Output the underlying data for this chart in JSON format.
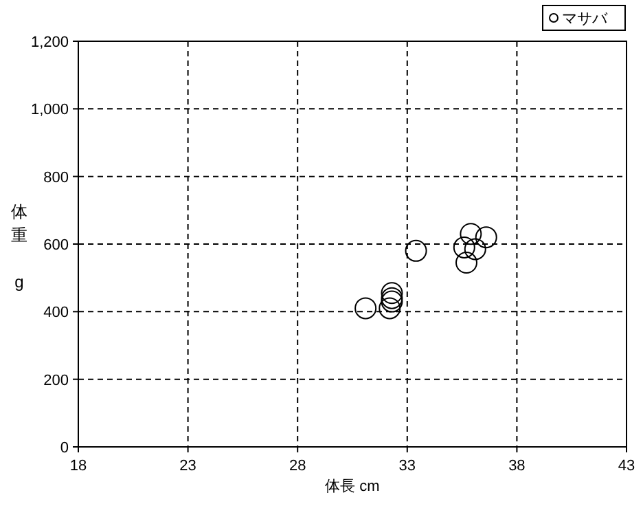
{
  "chart_data": {
    "type": "scatter",
    "xlabel": "体長 cm",
    "ylabel": "体重 g",
    "xlim": [
      18,
      43
    ],
    "xticks": [
      18,
      23,
      28,
      33,
      38,
      43
    ],
    "ylim": [
      0,
      1200
    ],
    "yticks": [
      0,
      200,
      400,
      600,
      800,
      {
        "value": 1000,
        "label": "1,000"
      },
      {
        "value": 1200,
        "label": "1,200"
      }
    ],
    "grid": true,
    "legend": "top right",
    "marker": "circle",
    "series": [
      {
        "name": "マサバ",
        "color": "#000000",
        "x": [
          31.1,
          32.2,
          32.3,
          32.3,
          32.3,
          33.4,
          35.6,
          35.9,
          36.6,
          36.1,
          35.7
        ],
        "values": [
          410,
          410,
          455,
          440,
          430,
          580,
          590,
          630,
          620,
          585,
          545
        ]
      }
    ]
  }
}
